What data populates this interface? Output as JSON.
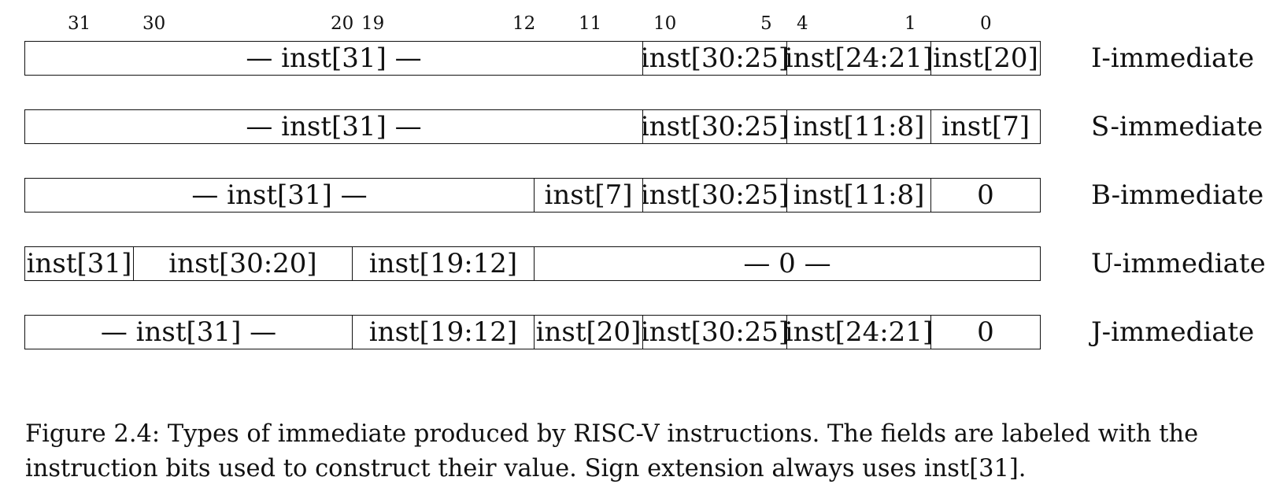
{
  "bit_numbers": [
    "31",
    "30",
    "20",
    "19",
    "12",
    "11",
    "10",
    "5",
    "4",
    "1",
    "0"
  ],
  "rows": [
    {
      "label": "I-immediate",
      "fields": [
        "— inst[31] —",
        "inst[30:25]",
        "inst[24:21]",
        "inst[20]"
      ]
    },
    {
      "label": "S-immediate",
      "fields": [
        "— inst[31] —",
        "inst[30:25]",
        "inst[11:8]",
        "inst[7]"
      ]
    },
    {
      "label": "B-immediate",
      "fields": [
        "— inst[31] —",
        "inst[7]",
        "inst[30:25]",
        "inst[11:8]",
        "0"
      ]
    },
    {
      "label": "U-immediate",
      "fields": [
        "inst[31]",
        "inst[30:20]",
        "inst[19:12]",
        "— 0 —"
      ]
    },
    {
      "label": "J-immediate",
      "fields": [
        "— inst[31] —",
        "inst[19:12]",
        "inst[20]",
        "inst[30:25]",
        "inst[24:21]",
        "0"
      ]
    }
  ],
  "caption": {
    "line1": "Figure 2.4: Types of immediate produced by RISC-V instructions. The fields are labeled with the",
    "line2": "instruction bits used to construct their value. Sign extension always uses inst[31]."
  }
}
